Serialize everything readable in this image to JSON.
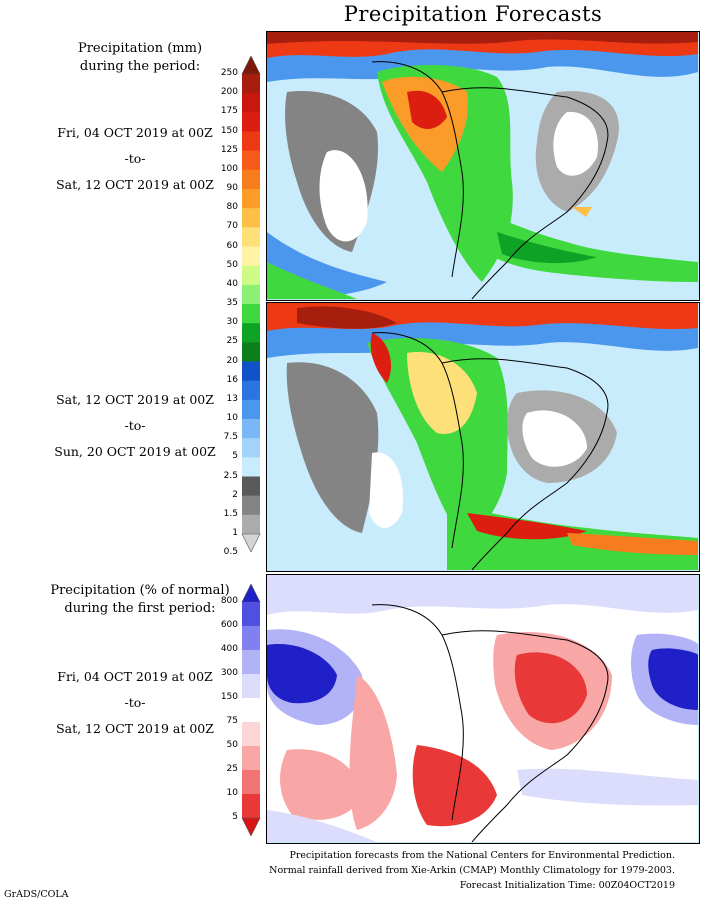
{
  "title": "Precipitation Forecasts",
  "amount_panel": {
    "legend_title_line1": "Precipitation (mm)",
    "legend_title_line2": "during the period:",
    "period1": {
      "start": "Fri, 04 OCT 2019 at 00Z",
      "sep": "-to-",
      "end": "Sat, 12 OCT 2019 at 00Z"
    },
    "period2": {
      "start": "Sat, 12 OCT 2019 at 00Z",
      "sep": "-to-",
      "end": "Sun, 20 OCT 2019 at 00Z"
    },
    "colorbar": {
      "labels": [
        "250",
        "200",
        "175",
        "150",
        "125",
        "100",
        "90",
        "80",
        "70",
        "60",
        "50",
        "40",
        "35",
        "30",
        "25",
        "20",
        "16",
        "13",
        "10",
        "7.5",
        "5",
        "2.5",
        "2",
        "1.5",
        "1",
        "0.5"
      ],
      "colors": [
        "#7a1a0a",
        "#a81e0e",
        "#c8170e",
        "#dc1e10",
        "#ee3a14",
        "#f55a1a",
        "#f77c1d",
        "#fb9c28",
        "#fdbf46",
        "#fee079",
        "#fff3a6",
        "#cffa86",
        "#8cf074",
        "#3fd93f",
        "#0fa326",
        "#0d7e1e",
        "#1152c9",
        "#2b75e0",
        "#4c97ee",
        "#79b7f6",
        "#a3d3fa",
        "#c9ecfc",
        "#5a5a5a",
        "#848484",
        "#ababab",
        "#d4d4d4"
      ]
    }
  },
  "anomaly_panel": {
    "legend_title_line1": "Precipitation (% of normal)",
    "legend_title_line2": "during the first period:",
    "period": {
      "start": "Fri, 04 OCT 2019 at 00Z",
      "sep": "-to-",
      "end": "Sat, 12 OCT 2019 at 00Z"
    },
    "colorbar": {
      "labels": [
        "800",
        "600",
        "400",
        "300",
        "150",
        "75",
        "50",
        "25",
        "10",
        "5"
      ],
      "colors": [
        "#2020c8",
        "#4f4fe0",
        "#8080ee",
        "#b2b2f6",
        "#dcdcfc",
        "#ffffff",
        "#fcd6d6",
        "#f8a6a6",
        "#f27474",
        "#e83838",
        "#d81414"
      ]
    }
  },
  "footer": {
    "line1": "Precipitation forecasts from the National Centers for Environmental Prediction.",
    "line2": "Normal rainfall derived from Xie-Arkin (CMAP) Monthly Climatology for 1979-2003.",
    "line3": "Forecast Initialization Time: 00Z04OCT2019"
  },
  "credit": "GrADS/COLA"
}
